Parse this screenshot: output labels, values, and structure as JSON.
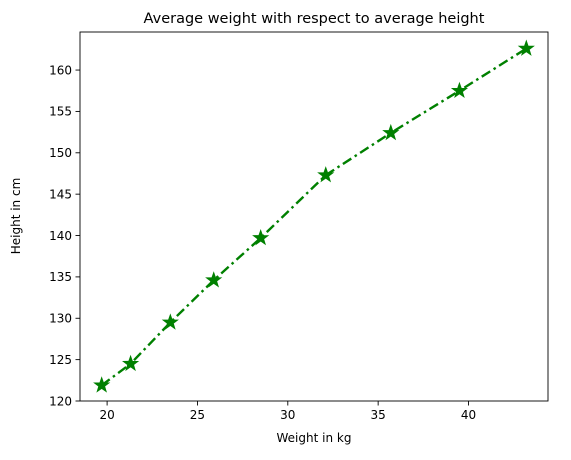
{
  "chart_data": {
    "type": "line",
    "title": "Average weight with respect to average height",
    "xlabel": "Weight in kg",
    "ylabel": "Height in cm",
    "xlim": [
      18.5,
      44.4
    ],
    "ylim": [
      120.0,
      164.6
    ],
    "xticks": [
      20,
      25,
      30,
      35,
      40
    ],
    "yticks": [
      120,
      125,
      130,
      135,
      140,
      145,
      150,
      155,
      160
    ],
    "grid": false,
    "series": [
      {
        "color": "#008000",
        "line_style": "dash-dot",
        "marker": "star",
        "x": [
          19.7,
          21.3,
          23.5,
          25.9,
          28.5,
          32.1,
          35.7,
          39.5,
          43.2
        ],
        "y": [
          121.9,
          124.5,
          129.5,
          134.6,
          139.7,
          147.3,
          152.4,
          157.5,
          162.6
        ]
      }
    ]
  }
}
